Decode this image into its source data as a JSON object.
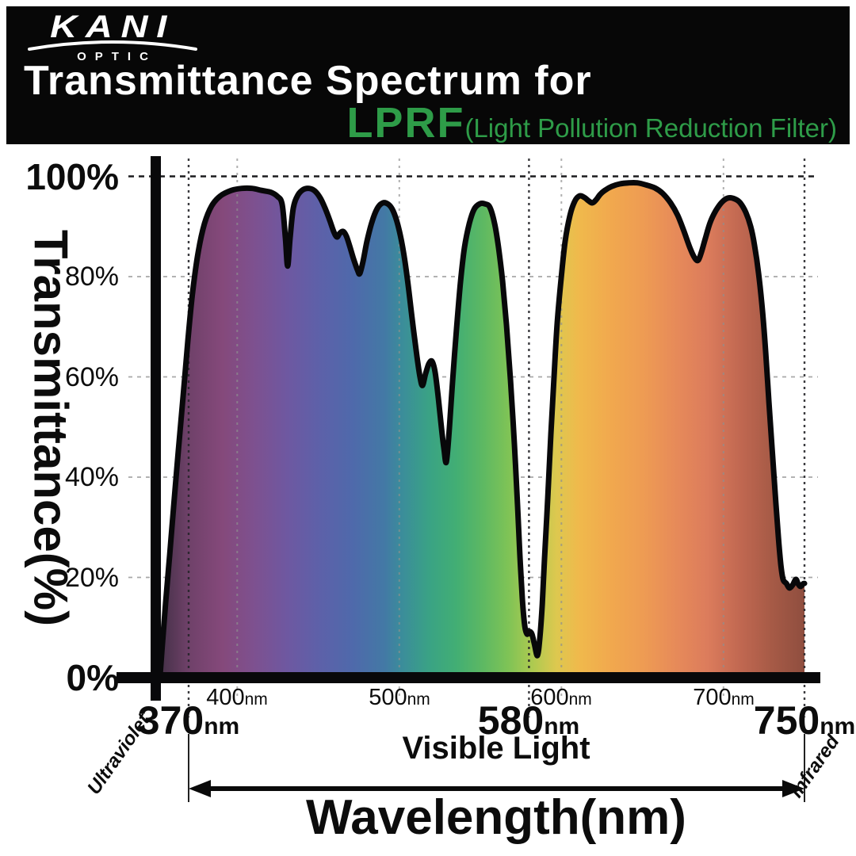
{
  "header": {
    "bg": "#070707",
    "logo": {
      "brand": "KANI",
      "sub": "OPTIC"
    },
    "title": "Transmittance Spectrum for",
    "product": "LPRF",
    "product_note": "(Light Pollution Reduction Filter)",
    "accent_green": "#2e9c48"
  },
  "chart_data": {
    "type": "area",
    "title": "Transmittance Spectrum for LPRF (Light Pollution Reduction Filter)",
    "xlabel": "Wavelength(nm)",
    "ylabel": "Transmittance(%)",
    "xlim": [
      352,
      750
    ],
    "ylim": [
      0,
      100
    ],
    "grid": true,
    "line_color": "#08080a",
    "grid_light_color": "#999999",
    "grid_dark_color": "#1b1b1f",
    "x_ticks": [
      {
        "num": "370",
        "unit": "nm",
        "nm": 370,
        "major": true
      },
      {
        "num": "400",
        "unit": "nm",
        "nm": 400,
        "major": false
      },
      {
        "num": "500",
        "unit": "nm",
        "nm": 500,
        "major": false
      },
      {
        "num": "580",
        "unit": "nm",
        "nm": 580,
        "major": true
      },
      {
        "num": "600",
        "unit": "nm",
        "nm": 600,
        "major": false
      },
      {
        "num": "700",
        "unit": "nm",
        "nm": 700,
        "major": false
      },
      {
        "num": "750",
        "unit": "nm",
        "nm": 750,
        "major": true
      }
    ],
    "y_ticks": [
      {
        "label": "100%",
        "pct": 100,
        "major": true
      },
      {
        "label": "80%",
        "pct": 80,
        "major": false
      },
      {
        "label": "60%",
        "pct": 60,
        "major": false
      },
      {
        "label": "40%",
        "pct": 40,
        "major": false
      },
      {
        "label": "20%",
        "pct": 20,
        "major": false
      },
      {
        "label": "0%",
        "pct": 0,
        "major": true
      }
    ],
    "gridlines": {
      "x": [
        {
          "nm": 370,
          "style": "dark"
        },
        {
          "nm": 400,
          "style": "light"
        },
        {
          "nm": 500,
          "style": "light"
        },
        {
          "nm": 580,
          "style": "dark"
        },
        {
          "nm": 600,
          "style": "light"
        },
        {
          "nm": 700,
          "style": "light"
        },
        {
          "nm": 750,
          "style": "dark"
        }
      ],
      "y": [
        {
          "pct": 100,
          "style": "dark"
        },
        {
          "pct": 80,
          "style": "light"
        },
        {
          "pct": 60,
          "style": "light"
        },
        {
          "pct": 40,
          "style": "light"
        },
        {
          "pct": 20,
          "style": "light"
        }
      ]
    },
    "annotations": {
      "left_region": "Ultraviolet",
      "right_region": "Infrared",
      "range_label": "Visible Light",
      "range_nm": [
        370,
        750
      ]
    },
    "spectrum_gradient": [
      [
        352,
        "#433046"
      ],
      [
        370,
        "#6f4169"
      ],
      [
        391,
        "#85497b"
      ],
      [
        411,
        "#7d5190"
      ],
      [
        431,
        "#6e58a1"
      ],
      [
        451,
        "#5d61a9"
      ],
      [
        471,
        "#4f69ab"
      ],
      [
        491,
        "#4379a5"
      ],
      [
        501,
        "#3b8c9b"
      ],
      [
        519,
        "#3aa384"
      ],
      [
        535,
        "#42ae74"
      ],
      [
        551,
        "#5cb863"
      ],
      [
        567,
        "#7ec356"
      ],
      [
        583,
        "#b0ca50"
      ],
      [
        597,
        "#ddc84f"
      ],
      [
        611,
        "#f0b94c"
      ],
      [
        631,
        "#f1a84e"
      ],
      [
        650,
        "#ee9c53"
      ],
      [
        670,
        "#e78b59"
      ],
      [
        690,
        "#dc7c5c"
      ],
      [
        710,
        "#c16851"
      ],
      [
        730,
        "#a65a46"
      ],
      [
        750,
        "#8f4e3f"
      ]
    ],
    "series": [
      {
        "name": "LPRF transmittance",
        "unit_x": "nm",
        "unit_y": "%",
        "points": [
          [
            352.4,
            0.5
          ],
          [
            353.9,
            7.1
          ],
          [
            355.8,
            15
          ],
          [
            358.3,
            24.5
          ],
          [
            360.7,
            34
          ],
          [
            363.6,
            45.1
          ],
          [
            366.6,
            56.1
          ],
          [
            369.5,
            67.2
          ],
          [
            372.4,
            76.7
          ],
          [
            375.9,
            84.9
          ],
          [
            379.8,
            90.6
          ],
          [
            384.2,
            94.1
          ],
          [
            389.6,
            96.1
          ],
          [
            396.4,
            97.2
          ],
          [
            402.8,
            97.6
          ],
          [
            409.1,
            97.6
          ],
          [
            415,
            97.2
          ],
          [
            420.9,
            96.8
          ],
          [
            424.8,
            96
          ],
          [
            427.7,
            94.4
          ],
          [
            429.7,
            87.7
          ],
          [
            431.1,
            82.1
          ],
          [
            432.6,
            87.7
          ],
          [
            434.6,
            93.7
          ],
          [
            437.5,
            96.3
          ],
          [
            440.9,
            97.4
          ],
          [
            444.3,
            97.6
          ],
          [
            447.8,
            97.1
          ],
          [
            451.2,
            95.7
          ],
          [
            454.1,
            93.7
          ],
          [
            457.1,
            91.2
          ],
          [
            459.5,
            89
          ],
          [
            461.5,
            87.9
          ],
          [
            463.4,
            88.7
          ],
          [
            465.4,
            89
          ],
          [
            467.3,
            88.1
          ],
          [
            469.3,
            86.2
          ],
          [
            471.7,
            83.6
          ],
          [
            474.2,
            81.3
          ],
          [
            475.6,
            80.6
          ],
          [
            477.6,
            83
          ],
          [
            480,
            87
          ],
          [
            483,
            90.8
          ],
          [
            486.4,
            93.6
          ],
          [
            489.8,
            94.7
          ],
          [
            493.3,
            94.4
          ],
          [
            496.2,
            93.1
          ],
          [
            499.1,
            90.3
          ],
          [
            502.1,
            85.8
          ],
          [
            505,
            79.5
          ],
          [
            507.9,
            71.6
          ],
          [
            510.9,
            64
          ],
          [
            512.8,
            59.9
          ],
          [
            514.3,
            58.3
          ],
          [
            516.2,
            60.6
          ],
          [
            518.2,
            62.6
          ],
          [
            520.2,
            63.1
          ],
          [
            522.1,
            60.9
          ],
          [
            524.1,
            55.7
          ],
          [
            526,
            49.8
          ],
          [
            527.5,
            45.8
          ],
          [
            529,
            43
          ],
          [
            530.9,
            49.8
          ],
          [
            532.9,
            59.3
          ],
          [
            535.3,
            69.6
          ],
          [
            537.8,
            79.1
          ],
          [
            540.2,
            85.8
          ],
          [
            543.2,
            90.6
          ],
          [
            546.1,
            93.4
          ],
          [
            549.5,
            94.5
          ],
          [
            552.9,
            94.5
          ],
          [
            555.9,
            93.8
          ],
          [
            558.8,
            90.6
          ],
          [
            561.2,
            85.8
          ],
          [
            563.7,
            79.1
          ],
          [
            566.1,
            70.4
          ],
          [
            568.6,
            59.3
          ],
          [
            571,
            46.6
          ],
          [
            573,
            34
          ],
          [
            574.4,
            24.5
          ],
          [
            575.9,
            15.8
          ],
          [
            577.4,
            10.3
          ],
          [
            578.8,
            8.7
          ],
          [
            580.3,
            9.2
          ],
          [
            581.8,
            8.7
          ],
          [
            583.3,
            6.8
          ],
          [
            585.2,
            4.4
          ],
          [
            586.7,
            7.9
          ],
          [
            588.2,
            14.7
          ],
          [
            589.6,
            23.7
          ],
          [
            591.6,
            35.9
          ],
          [
            593.5,
            48.5
          ],
          [
            595.5,
            60.2
          ],
          [
            597.4,
            70.7
          ],
          [
            599.9,
            79.8
          ],
          [
            602.3,
            87
          ],
          [
            605.3,
            92.2
          ],
          [
            608.2,
            95
          ],
          [
            611.1,
            96.1
          ],
          [
            614.1,
            95.8
          ],
          [
            616.5,
            95.2
          ],
          [
            619,
            94.7
          ],
          [
            621.4,
            95.3
          ],
          [
            623.9,
            96.4
          ],
          [
            626.8,
            97.2
          ],
          [
            631.2,
            98
          ],
          [
            636.1,
            98.5
          ],
          [
            641.5,
            98.7
          ],
          [
            646.8,
            98.7
          ],
          [
            652.2,
            98.3
          ],
          [
            657.6,
            97.7
          ],
          [
            662.5,
            96.6
          ],
          [
            667.4,
            94.7
          ],
          [
            671.8,
            92.2
          ],
          [
            675.7,
            89
          ],
          [
            679.6,
            85.5
          ],
          [
            682.5,
            83.6
          ],
          [
            684.5,
            83.3
          ],
          [
            686.4,
            84.9
          ],
          [
            688.9,
            87.7
          ],
          [
            691.8,
            90.8
          ],
          [
            695.2,
            93.1
          ],
          [
            699.2,
            94.9
          ],
          [
            703.1,
            95.7
          ],
          [
            707,
            95.5
          ],
          [
            710.4,
            94.7
          ],
          [
            713.8,
            92.8
          ],
          [
            716.8,
            90
          ],
          [
            719.2,
            86.2
          ],
          [
            721.7,
            80.6
          ],
          [
            724.1,
            73.2
          ],
          [
            726.1,
            64.8
          ],
          [
            728,
            55.3
          ],
          [
            730,
            45.8
          ],
          [
            732,
            36.4
          ],
          [
            733.9,
            28
          ],
          [
            735.4,
            22.6
          ],
          [
            736.8,
            19.6
          ],
          [
            738.8,
            18.8
          ],
          [
            740.7,
            17.9
          ],
          [
            742.7,
            18.5
          ],
          [
            744.7,
            19.6
          ],
          [
            746.1,
            18.7
          ],
          [
            747.6,
            18.2
          ],
          [
            749.1,
            18.7
          ],
          [
            750,
            18.8
          ]
        ]
      }
    ]
  }
}
